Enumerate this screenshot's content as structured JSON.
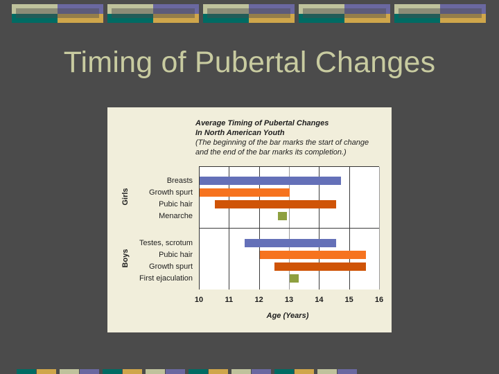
{
  "slide": {
    "title": "Timing of Pubertal Changes",
    "background": "#4b4b4b",
    "title_color": "#c8cba0",
    "decoration_colors": {
      "cream": "#bfc29c",
      "purple": "#6a68a0",
      "teal": "#006b63",
      "gold": "#cfa64b"
    }
  },
  "chart_data": {
    "type": "bar",
    "orientation": "horizontal-range",
    "title": "Average Timing of Pubertal Changes in North American Youth",
    "title_line1": "Average Timing of Pubertal Changes",
    "title_line2": "In North American Youth",
    "subtitle": "(The beginning of the bar marks the start of change and the end of the bar marks its completion.)",
    "subtitle_line1": "(The beginning of the bar marks the start of change",
    "subtitle_line2": "and the end of the bar marks its completion.)",
    "xlabel": "Age (Years)",
    "ylabel": "",
    "xlim": [
      10,
      16
    ],
    "x_ticks": [
      "10",
      "11",
      "12",
      "13",
      "14",
      "15",
      "16"
    ],
    "grid": "vertical",
    "groups": [
      {
        "name": "Girls",
        "items": [
          {
            "label": "Breasts",
            "start": 10.0,
            "end": 14.7,
            "color": "#6470b8"
          },
          {
            "label": "Growth spurt",
            "start": 10.0,
            "end": 13.0,
            "color": "#f6731f"
          },
          {
            "label": "Pubic hair",
            "start": 10.5,
            "end": 14.55,
            "color": "#cf5407"
          },
          {
            "label": "Menarche",
            "start": 12.6,
            "end": 12.9,
            "color": "#8ea040"
          }
        ]
      },
      {
        "name": "Boys",
        "items": [
          {
            "label": "Testes, scrotum",
            "start": 11.5,
            "end": 14.55,
            "color": "#6470b8"
          },
          {
            "label": "Pubic hair",
            "start": 12.0,
            "end": 15.55,
            "color": "#f6731f"
          },
          {
            "label": "Growth spurt",
            "start": 12.5,
            "end": 15.55,
            "color": "#cf5407"
          },
          {
            "label": "First ejaculation",
            "start": 13.0,
            "end": 13.3,
            "color": "#8ea040"
          }
        ]
      }
    ]
  }
}
